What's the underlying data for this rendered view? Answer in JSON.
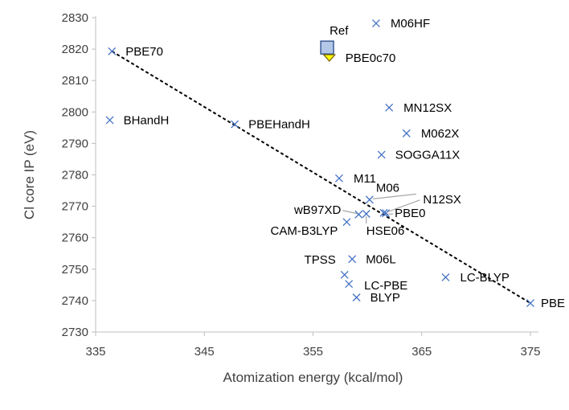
{
  "chart_data": {
    "type": "scatter",
    "title": "",
    "xlabel": "Atomization energy (kcal/mol)",
    "ylabel": "Cl core IP (eV)",
    "xlim": [
      335,
      375
    ],
    "ylim": [
      2730,
      2830
    ],
    "xticks": [
      335,
      345,
      355,
      365,
      375
    ],
    "yticks": [
      2730,
      2740,
      2750,
      2760,
      2770,
      2780,
      2790,
      2800,
      2810,
      2820,
      2830
    ],
    "grid": false,
    "colors": {
      "marker": "#4472c4",
      "trend": "#000000",
      "ref_fill": "#b4c7e7",
      "ref_edge": "#2f528f",
      "pbe0c70_fill": "#ffff00",
      "pbe0c70_edge": "#7f6000",
      "leader": "#a6a6a6"
    },
    "points": [
      {
        "label": "PBE70",
        "x": 336.5,
        "y": 2819.3
      },
      {
        "label": "BHandH",
        "x": 336.3,
        "y": 2797.4
      },
      {
        "label": "PBEHandH",
        "x": 347.8,
        "y": 2796.1
      },
      {
        "label": "M06HF",
        "x": 360.8,
        "y": 2828.2
      },
      {
        "label": "MN12SX",
        "x": 362.0,
        "y": 2801.4
      },
      {
        "label": "M062X",
        "x": 363.6,
        "y": 2793.2
      },
      {
        "label": "SOGGA11X",
        "x": 361.3,
        "y": 2786.4
      },
      {
        "label": "M11",
        "x": 357.4,
        "y": 2778.9
      },
      {
        "label": "M06",
        "x": 360.2,
        "y": 2772.1
      },
      {
        "label": "N12SX",
        "x": 361.5,
        "y": 2767.9
      },
      {
        "label": "wB97XD",
        "x": 359.2,
        "y": 2767.4
      },
      {
        "label": "PBE0",
        "x": 361.7,
        "y": 2767.8
      },
      {
        "label": "HSE06",
        "x": 359.9,
        "y": 2767.6
      },
      {
        "label": "CAM-B3LYP",
        "x": 358.1,
        "y": 2765.0
      },
      {
        "label": "M06L",
        "x": 358.6,
        "y": 2753.2
      },
      {
        "label": "TPSS",
        "x": 357.9,
        "y": 2748.2
      },
      {
        "label": "LC-PBE",
        "x": 358.3,
        "y": 2745.3
      },
      {
        "label": "BLYP",
        "x": 359.0,
        "y": 2741.0
      },
      {
        "label": "LC-BLYP",
        "x": 367.2,
        "y": 2747.4
      },
      {
        "label": "PBE",
        "x": 375.0,
        "y": 2739.2
      }
    ],
    "special_points": [
      {
        "label": "Ref",
        "x": 356.3,
        "y": 2820.5,
        "marker": "square"
      },
      {
        "label": "PBE0c70",
        "x": 356.5,
        "y": 2817.2,
        "marker": "diamond"
      }
    ],
    "trendline": {
      "style": "dashed",
      "x": [
        336.5,
        375.0
      ],
      "y": [
        2819.3,
        2739.2
      ]
    }
  }
}
